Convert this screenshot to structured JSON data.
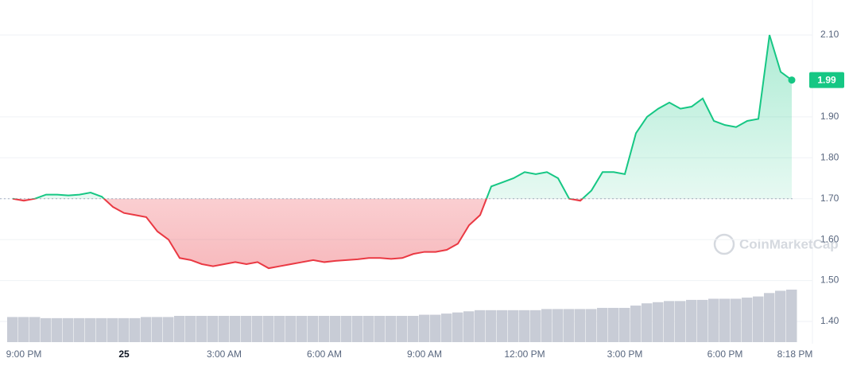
{
  "chart_data": {
    "type": "line",
    "watermark": "CoinMarketCap",
    "categories": [
      null,
      "9:00 PM",
      null,
      null,
      null,
      null,
      null,
      null,
      null,
      null,
      "25",
      null,
      null,
      null,
      null,
      null,
      null,
      null,
      null,
      "3:00 AM",
      null,
      null,
      null,
      null,
      null,
      null,
      null,
      null,
      "6:00 AM",
      null,
      null,
      null,
      null,
      null,
      null,
      null,
      null,
      "9:00 AM",
      null,
      null,
      null,
      null,
      null,
      null,
      null,
      null,
      "12:00 PM",
      null,
      null,
      null,
      null,
      null,
      null,
      null,
      null,
      "3:00 PM",
      null,
      null,
      null,
      null,
      null,
      null,
      null,
      null,
      "6:00 PM",
      null,
      null,
      null,
      null,
      null,
      "8:18 PM"
    ],
    "series": [
      {
        "name": "Price",
        "color_up": "#16c784",
        "color_down": "#ea3943",
        "values": [
          1.7,
          1.695,
          1.7,
          1.71,
          1.71,
          1.708,
          1.71,
          1.715,
          1.705,
          1.68,
          1.665,
          1.66,
          1.655,
          1.62,
          1.6,
          1.555,
          1.55,
          1.54,
          1.535,
          1.54,
          1.545,
          1.54,
          1.545,
          1.53,
          1.535,
          1.54,
          1.545,
          1.55,
          1.545,
          1.548,
          1.55,
          1.552,
          1.555,
          1.555,
          1.553,
          1.555,
          1.565,
          1.57,
          1.57,
          1.575,
          1.59,
          1.635,
          1.66,
          1.73,
          1.74,
          1.75,
          1.765,
          1.76,
          1.765,
          1.75,
          1.7,
          1.695,
          1.72,
          1.765,
          1.765,
          1.76,
          1.86,
          1.9,
          1.92,
          1.935,
          1.92,
          1.925,
          1.945,
          1.89,
          1.88,
          1.875,
          1.89,
          1.895,
          2.1,
          2.01,
          1.99
        ]
      },
      {
        "name": "Volume",
        "color": "#c8ccd6",
        "values": [
          22,
          22,
          22,
          21,
          21,
          21,
          21,
          21,
          21,
          21,
          21,
          21,
          22,
          22,
          22,
          23,
          23,
          23,
          23,
          23,
          23,
          23,
          23,
          23,
          23,
          23,
          23,
          23,
          23,
          23,
          23,
          23,
          23,
          23,
          23,
          23,
          23,
          24,
          24,
          25,
          26,
          27,
          28,
          28,
          28,
          28,
          28,
          28,
          29,
          29,
          29,
          29,
          29,
          30,
          30,
          30,
          32,
          34,
          35,
          36,
          36,
          37,
          37,
          38,
          38,
          38,
          39,
          40,
          43,
          45,
          46
        ]
      }
    ],
    "baseline": 1.7,
    "ylim": [
      1.35,
      2.15
    ],
    "yticks": [
      {
        "value": 1.4,
        "label": "1.40"
      },
      {
        "value": 1.5,
        "label": "1.50"
      },
      {
        "value": 1.6,
        "label": "1.60"
      },
      {
        "value": 1.7,
        "label": "1.70"
      },
      {
        "value": 1.8,
        "label": "1.80"
      },
      {
        "value": 1.9,
        "label": "1.90"
      },
      {
        "value": 2.1,
        "label": "2.10"
      }
    ],
    "grid": true
  }
}
